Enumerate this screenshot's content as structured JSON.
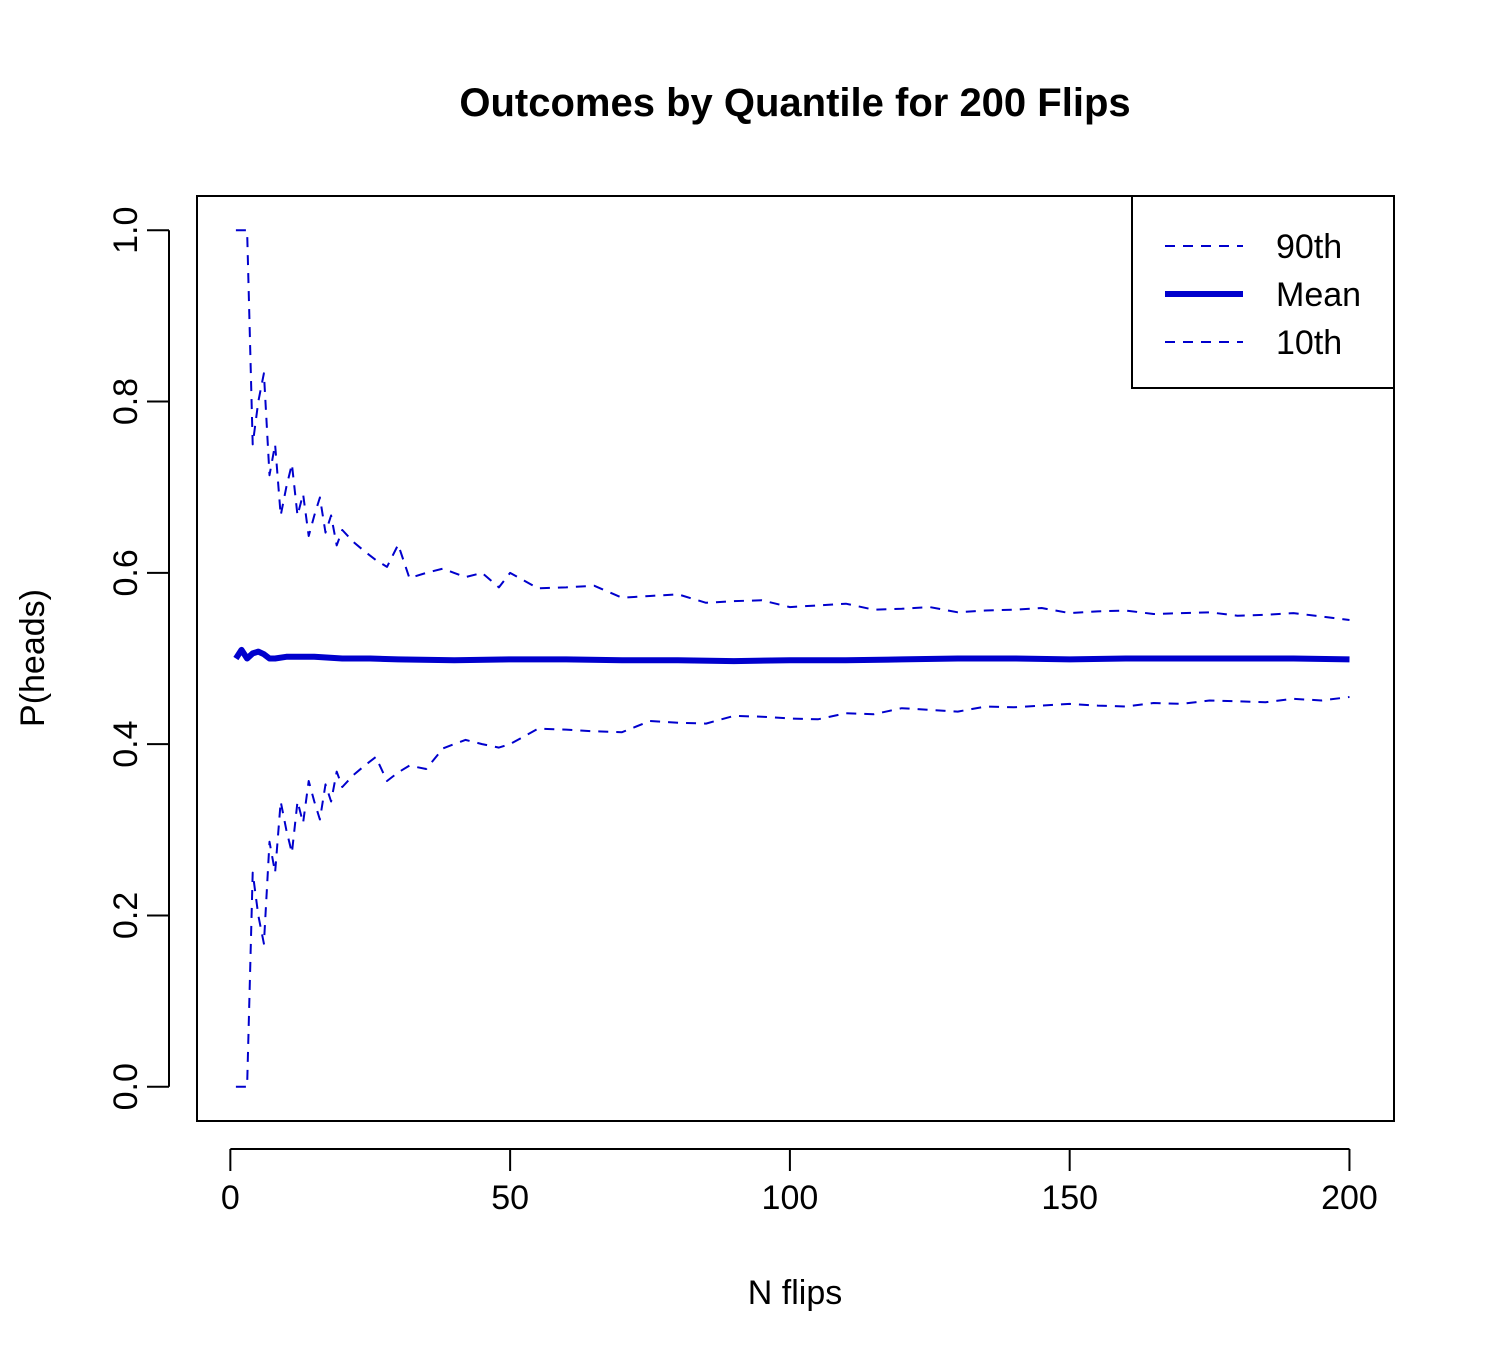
{
  "chart_data": {
    "type": "line",
    "title": "Outcomes by Quantile for 200 Flips",
    "xlabel": "N flips",
    "ylabel": "P(heads)",
    "xlim": [
      -5.96,
      207.96
    ],
    "ylim": [
      -0.04,
      1.04
    ],
    "xticks": [
      0,
      50,
      100,
      150,
      200
    ],
    "xtick_labels": [
      "0",
      "50",
      "100",
      "150",
      "200"
    ],
    "yticks": [
      0.0,
      0.2,
      0.4,
      0.6,
      0.8,
      1.0
    ],
    "ytick_labels": [
      "0.0",
      "0.2",
      "0.4",
      "0.6",
      "0.8",
      "1.0"
    ],
    "grid": false,
    "legend_position": "top-right",
    "line_color": "#0000CD",
    "series": [
      {
        "name": "90th",
        "style": "dashed",
        "x": [
          1,
          2,
          3,
          4,
          5,
          6,
          7,
          8,
          9,
          10,
          11,
          12,
          13,
          14,
          15,
          16,
          17,
          18,
          19,
          20,
          22,
          24,
          26,
          28,
          30,
          32,
          35,
          38,
          40,
          42,
          45,
          48,
          50,
          55,
          60,
          65,
          70,
          75,
          80,
          85,
          90,
          95,
          100,
          105,
          110,
          115,
          120,
          125,
          130,
          135,
          140,
          145,
          150,
          155,
          160,
          165,
          170,
          175,
          180,
          185,
          190,
          195,
          200
        ],
        "y": [
          1.0,
          1.0,
          1.0,
          0.75,
          0.8,
          0.833,
          0.714,
          0.75,
          0.667,
          0.7,
          0.727,
          0.667,
          0.692,
          0.643,
          0.667,
          0.688,
          0.647,
          0.667,
          0.632,
          0.65,
          0.636,
          0.625,
          0.615,
          0.607,
          0.633,
          0.594,
          0.6,
          0.605,
          0.6,
          0.595,
          0.6,
          0.583,
          0.6,
          0.582,
          0.583,
          0.585,
          0.571,
          0.573,
          0.575,
          0.565,
          0.567,
          0.568,
          0.56,
          0.562,
          0.564,
          0.557,
          0.558,
          0.56,
          0.554,
          0.556,
          0.557,
          0.559,
          0.553,
          0.555,
          0.556,
          0.552,
          0.553,
          0.554,
          0.55,
          0.551,
          0.553,
          0.549,
          0.545
        ]
      },
      {
        "name": "Mean",
        "style": "solid",
        "x": [
          1,
          2,
          3,
          4,
          5,
          6,
          7,
          8,
          10,
          12,
          15,
          20,
          25,
          30,
          40,
          50,
          60,
          70,
          80,
          90,
          100,
          110,
          120,
          130,
          140,
          150,
          160,
          170,
          180,
          190,
          200
        ],
        "y": [
          0.5,
          0.51,
          0.5,
          0.506,
          0.508,
          0.505,
          0.5,
          0.5,
          0.502,
          0.502,
          0.502,
          0.5,
          0.5,
          0.499,
          0.498,
          0.499,
          0.499,
          0.498,
          0.498,
          0.497,
          0.498,
          0.498,
          0.499,
          0.5,
          0.5,
          0.499,
          0.5,
          0.5,
          0.5,
          0.5,
          0.499
        ]
      },
      {
        "name": "10th",
        "style": "dashed",
        "x": [
          1,
          2,
          3,
          4,
          5,
          6,
          7,
          8,
          9,
          10,
          11,
          12,
          13,
          14,
          15,
          16,
          17,
          18,
          19,
          20,
          22,
          24,
          26,
          28,
          30,
          32,
          35,
          38,
          40,
          42,
          45,
          48,
          50,
          55,
          60,
          65,
          70,
          75,
          80,
          85,
          90,
          95,
          100,
          105,
          110,
          115,
          120,
          125,
          130,
          135,
          140,
          145,
          150,
          155,
          160,
          165,
          170,
          175,
          180,
          185,
          190,
          195,
          200
        ],
        "y": [
          0.0,
          0.0,
          0.0,
          0.25,
          0.2,
          0.167,
          0.286,
          0.25,
          0.333,
          0.3,
          0.273,
          0.333,
          0.308,
          0.357,
          0.333,
          0.312,
          0.353,
          0.333,
          0.368,
          0.35,
          0.364,
          0.375,
          0.385,
          0.357,
          0.367,
          0.375,
          0.371,
          0.395,
          0.4,
          0.405,
          0.4,
          0.396,
          0.4,
          0.418,
          0.417,
          0.415,
          0.414,
          0.427,
          0.425,
          0.424,
          0.433,
          0.432,
          0.43,
          0.429,
          0.436,
          0.435,
          0.442,
          0.44,
          0.438,
          0.444,
          0.443,
          0.445,
          0.447,
          0.445,
          0.444,
          0.448,
          0.447,
          0.451,
          0.45,
          0.449,
          0.453,
          0.451,
          0.455
        ]
      }
    ]
  }
}
